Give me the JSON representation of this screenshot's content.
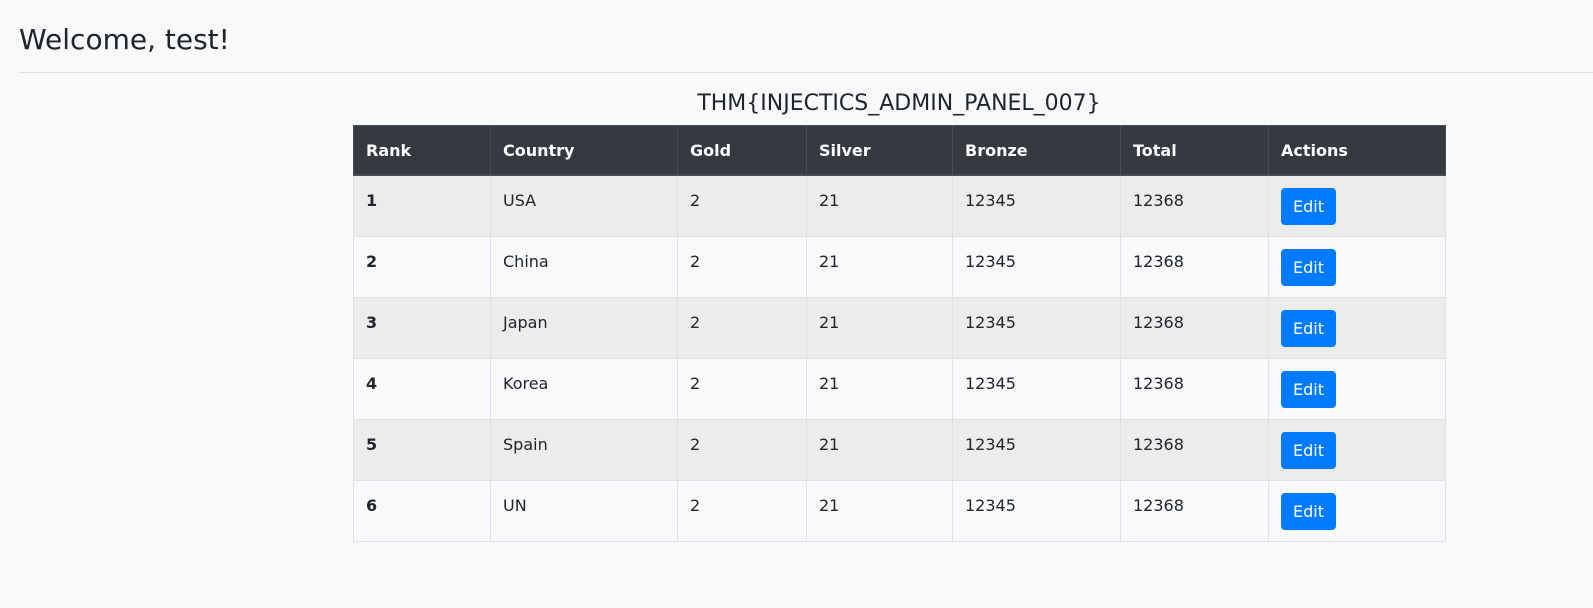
{
  "header": {
    "welcome": "Welcome, test!"
  },
  "flag": "THM{INJECTICS_ADMIN_PANEL_007}",
  "table": {
    "columns": [
      "Rank",
      "Country",
      "Gold",
      "Silver",
      "Bronze",
      "Total",
      "Actions"
    ],
    "rows": [
      {
        "rank": "1",
        "country": "USA",
        "gold": "2",
        "silver": "21",
        "bronze": "12345",
        "total": "12368",
        "action": "Edit"
      },
      {
        "rank": "2",
        "country": "China",
        "gold": "2",
        "silver": "21",
        "bronze": "12345",
        "total": "12368",
        "action": "Edit"
      },
      {
        "rank": "3",
        "country": "Japan",
        "gold": "2",
        "silver": "21",
        "bronze": "12345",
        "total": "12368",
        "action": "Edit"
      },
      {
        "rank": "4",
        "country": "Korea",
        "gold": "2",
        "silver": "21",
        "bronze": "12345",
        "total": "12368",
        "action": "Edit"
      },
      {
        "rank": "5",
        "country": "Spain",
        "gold": "2",
        "silver": "21",
        "bronze": "12345",
        "total": "12368",
        "action": "Edit"
      },
      {
        "rank": "6",
        "country": "UN",
        "gold": "2",
        "silver": "21",
        "bronze": "12345",
        "total": "12368",
        "action": "Edit"
      }
    ]
  },
  "colors": {
    "header_bg": "#343a40",
    "button": "#007bff",
    "page_bg": "#f8f9fa"
  }
}
